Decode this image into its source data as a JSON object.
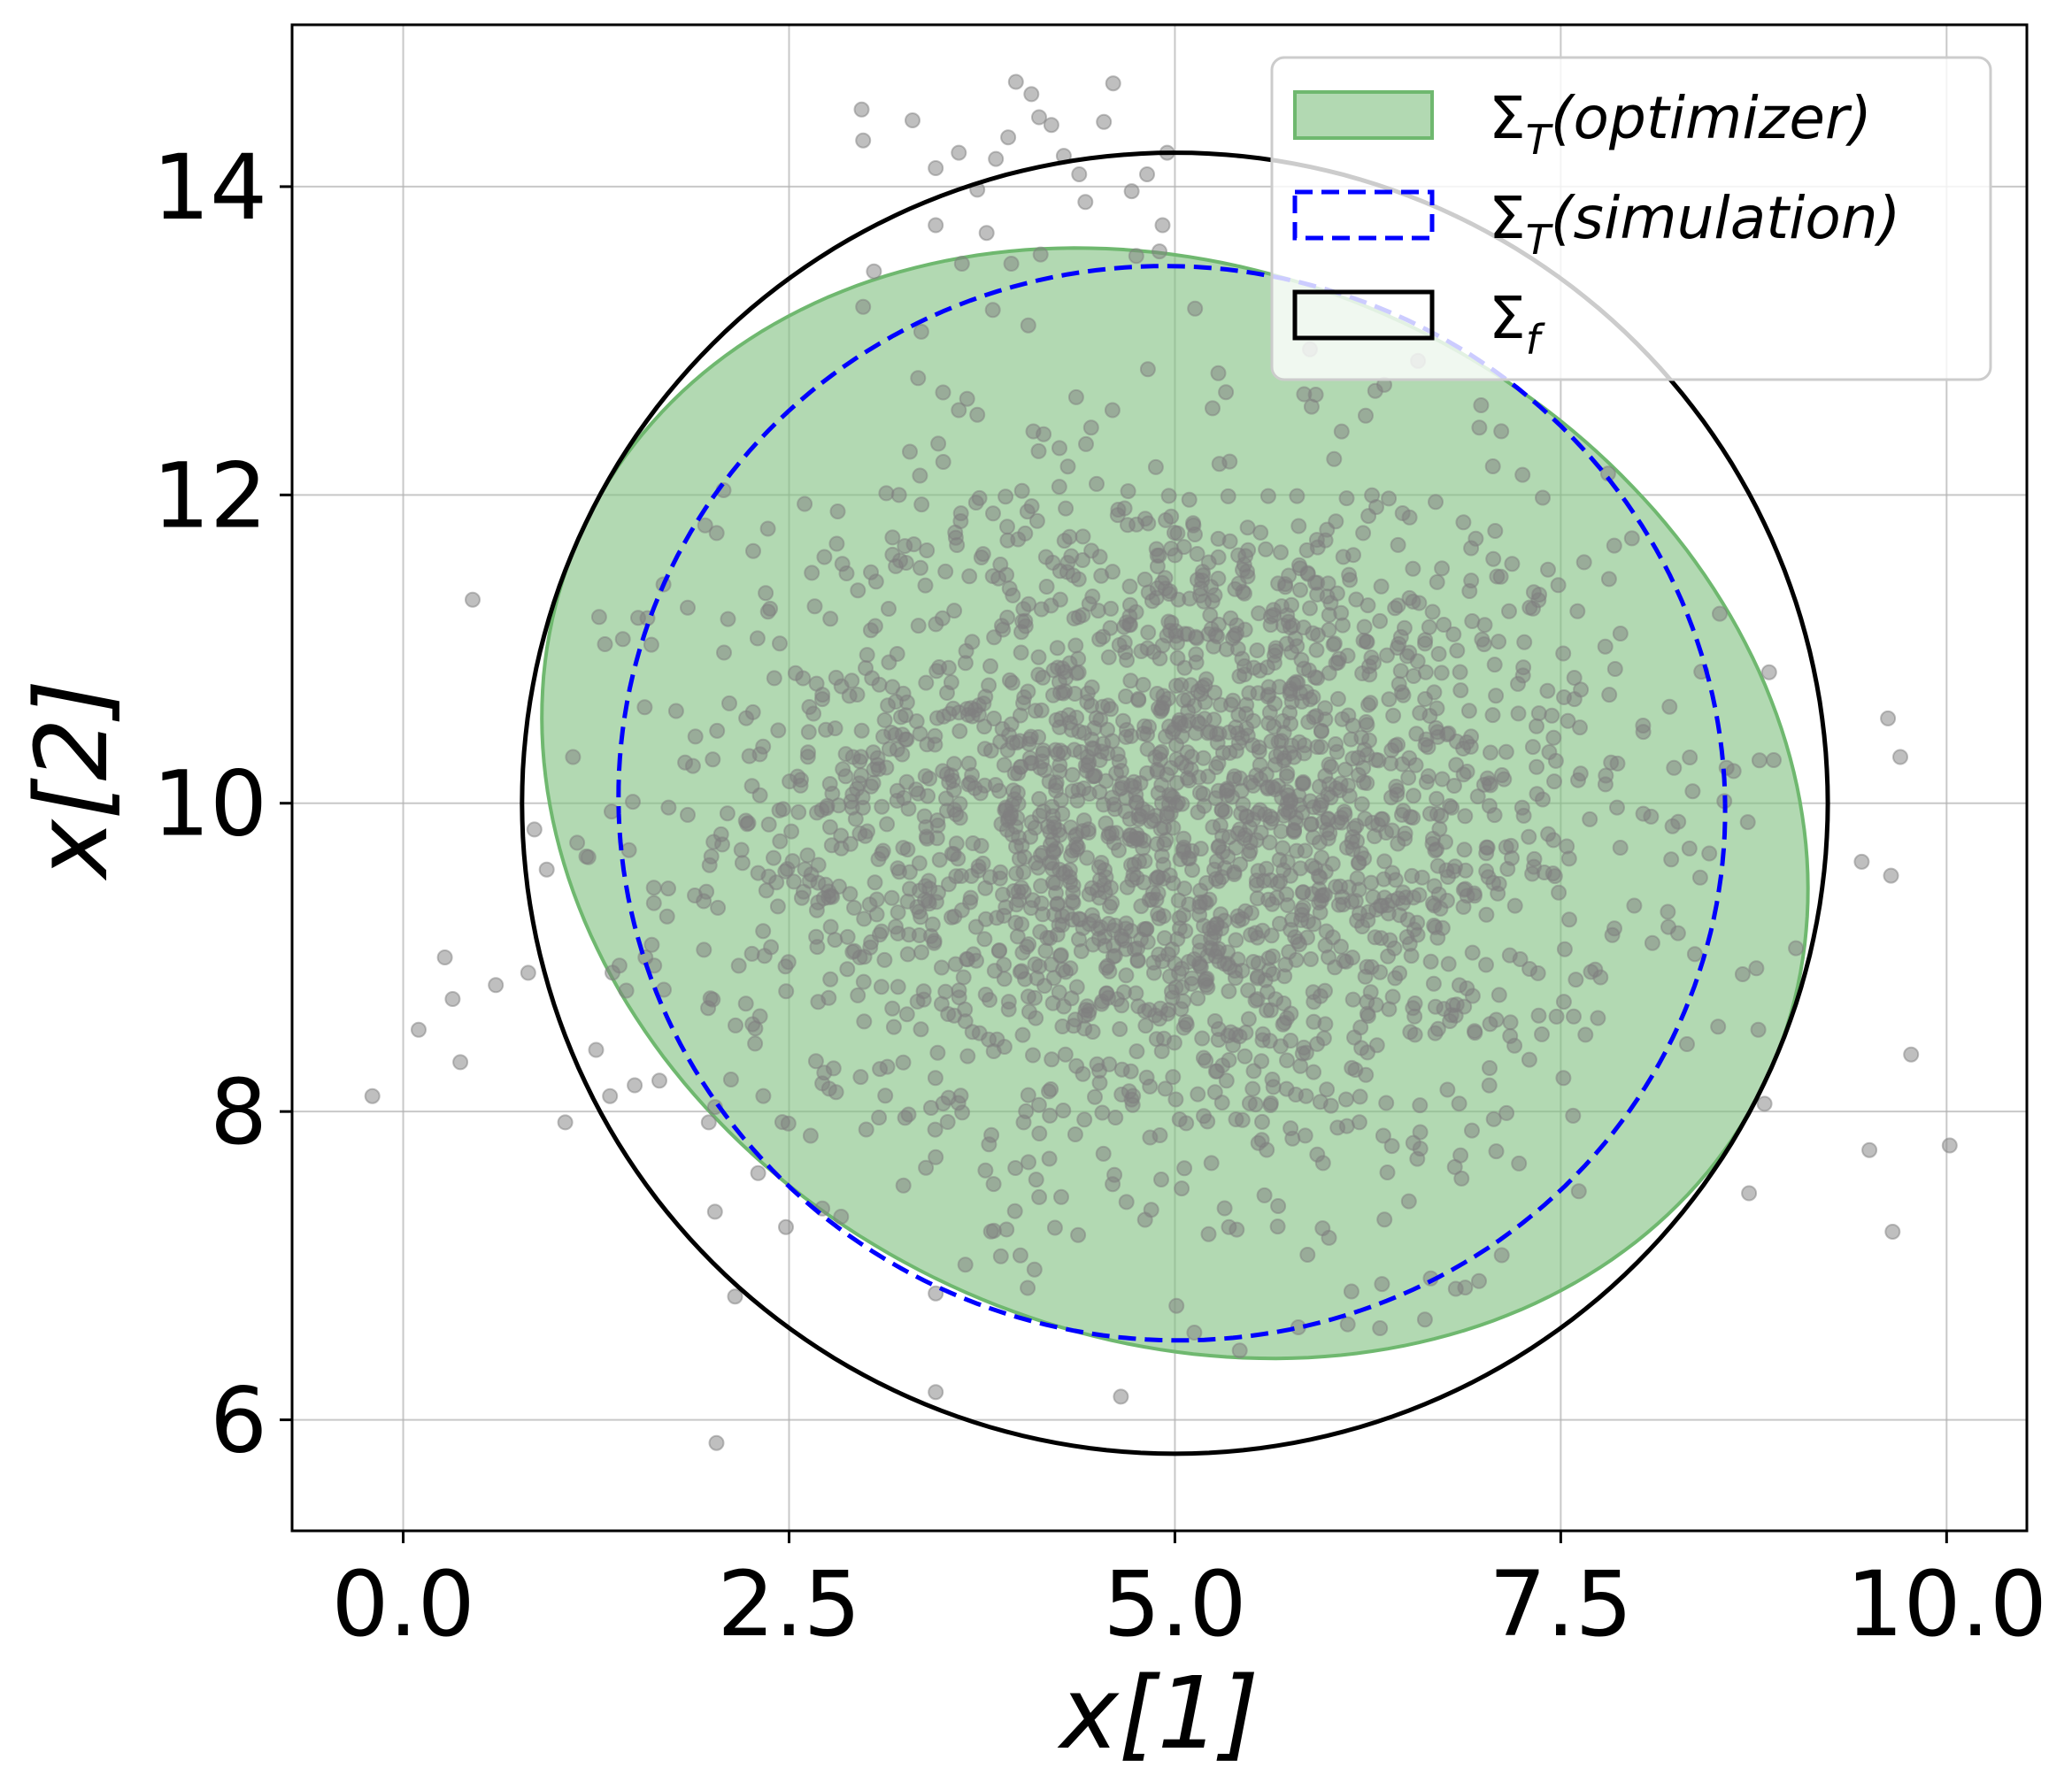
{
  "chart_data": {
    "type": "scatter",
    "title": "",
    "xlabel": "x[1]",
    "ylabel": "x[2]",
    "xlim": [
      -0.72,
      10.52
    ],
    "ylim": [
      5.28,
      15.05
    ],
    "x_ticks": [
      0.0,
      2.5,
      5.0,
      7.5,
      10.0
    ],
    "x_tick_labels": [
      "0.0",
      "2.5",
      "5.0",
      "7.5",
      "10.0"
    ],
    "y_ticks": [
      6,
      8,
      10,
      12,
      14
    ],
    "y_tick_labels": [
      "6",
      "8",
      "10",
      "12",
      "14"
    ],
    "grid": true,
    "legend_position": "top-right",
    "legend": [
      {
        "symbol": "Σ",
        "sub": "T",
        "text": "(optimizer)",
        "style": "filled",
        "color": "#7fbf7f"
      },
      {
        "symbol": "Σ",
        "sub": "T",
        "text": "(simulation)",
        "style": "dashed",
        "color": "#0000ff"
      },
      {
        "symbol": "Σ",
        "sub": "f",
        "text": "",
        "style": "solid",
        "color": "#000000"
      }
    ],
    "ellipses": [
      {
        "name": "optimizer",
        "center": [
          5.0,
          10.0
        ],
        "semi_axes": [
          4.23,
          3.45
        ],
        "angle_deg": -25,
        "fill": "#7fbf7f",
        "fill_opacity": 0.6,
        "stroke": "#6fb86f"
      },
      {
        "name": "simulation",
        "center": [
          4.98,
          10.0
        ],
        "semi_axes": [
          3.59,
          3.48
        ],
        "angle_deg": -12,
        "fill": "none",
        "stroke": "#0000ff",
        "dash": true
      },
      {
        "name": "terminal",
        "center": [
          5.0,
          10.0
        ],
        "semi_axes": [
          4.23,
          4.22
        ],
        "angle_deg": 0,
        "fill": "none",
        "stroke": "#000000"
      }
    ],
    "points": {
      "color": "#808080",
      "opacity": 0.5,
      "outliers": [
        [
          -0.2,
          8.1
        ],
        [
          0.1,
          8.53
        ],
        [
          0.27,
          9.0
        ],
        [
          0.32,
          8.73
        ],
        [
          0.37,
          8.32
        ],
        [
          0.6,
          8.82
        ],
        [
          0.81,
          8.9
        ],
        [
          0.45,
          11.32
        ],
        [
          0.85,
          9.83
        ],
        [
          0.93,
          9.57
        ],
        [
          1.05,
          7.93
        ],
        [
          1.1,
          10.3
        ],
        [
          1.2,
          9.65
        ],
        [
          1.25,
          8.4
        ],
        [
          1.34,
          8.1
        ],
        [
          1.5,
          8.17
        ],
        [
          1.57,
          9.0
        ],
        [
          1.66,
          8.2
        ],
        [
          1.98,
          7.93
        ],
        [
          2.02,
          7.35
        ],
        [
          2.03,
          5.85
        ],
        [
          2.15,
          6.8
        ],
        [
          2.3,
          7.6
        ],
        [
          2.48,
          7.25
        ],
        [
          2.97,
          14.5
        ],
        [
          2.98,
          14.3
        ],
        [
          2.98,
          13.22
        ],
        [
          3.05,
          13.45
        ],
        [
          3.3,
          14.43
        ],
        [
          3.45,
          14.12
        ],
        [
          3.45,
          13.75
        ],
        [
          3.6,
          14.22
        ],
        [
          3.72,
          13.98
        ],
        [
          3.84,
          14.18
        ],
        [
          3.92,
          14.32
        ],
        [
          3.97,
          14.68
        ],
        [
          4.07,
          14.6
        ],
        [
          4.12,
          14.45
        ],
        [
          4.2,
          14.4
        ],
        [
          4.28,
          14.2
        ],
        [
          4.38,
          14.08
        ],
        [
          4.42,
          13.9
        ],
        [
          4.54,
          14.42
        ],
        [
          4.6,
          14.67
        ],
        [
          4.72,
          13.97
        ],
        [
          4.82,
          14.08
        ],
        [
          4.92,
          13.75
        ],
        [
          4.95,
          14.22
        ],
        [
          4.9,
          13.58
        ],
        [
          4.75,
          13.55
        ],
        [
          4.13,
          13.56
        ],
        [
          3.94,
          13.5
        ],
        [
          3.78,
          13.7
        ],
        [
          3.62,
          13.5
        ],
        [
          3.6,
          12.55
        ],
        [
          3.72,
          12.52
        ],
        [
          3.82,
          13.2
        ],
        [
          4.05,
          13.1
        ],
        [
          3.45,
          6.82
        ],
        [
          3.45,
          6.18
        ],
        [
          4.65,
          6.15
        ],
        [
          5.42,
          6.45
        ],
        [
          6.12,
          6.62
        ],
        [
          6.62,
          6.65
        ],
        [
          6.82,
          6.85
        ],
        [
          6.97,
          6.9
        ],
        [
          8.52,
          8.55
        ],
        [
          8.72,
          7.47
        ],
        [
          8.78,
          8.53
        ],
        [
          8.82,
          8.05
        ],
        [
          8.85,
          10.85
        ],
        [
          8.88,
          10.28
        ],
        [
          9.45,
          9.62
        ],
        [
          9.5,
          7.75
        ],
        [
          9.62,
          10.55
        ],
        [
          9.64,
          9.53
        ],
        [
          9.65,
          7.22
        ],
        [
          9.7,
          10.3
        ],
        [
          9.77,
          8.37
        ],
        [
          10.02,
          7.78
        ],
        [
          5.35,
          7.25
        ],
        [
          5.8,
          6.6
        ]
      ],
      "main_cloud": {
        "count": 2300,
        "center": [
          5.0,
          9.9
        ],
        "std": [
          1.45,
          1.15
        ],
        "seed": 12345
      }
    }
  }
}
